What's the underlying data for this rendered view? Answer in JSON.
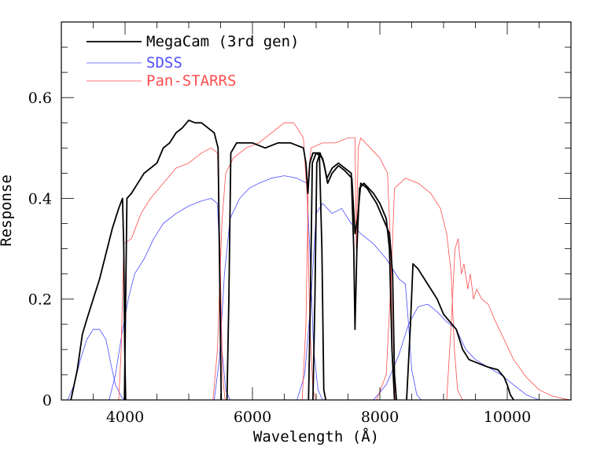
{
  "chart_data": {
    "type": "line",
    "title": "",
    "xlabel": "Wavelength (Å)",
    "ylabel": "Response",
    "xlim": [
      3000,
      11000
    ],
    "ylim": [
      0,
      0.75
    ],
    "xticks": [
      4000,
      6000,
      8000,
      10000
    ],
    "xtick_labels": [
      "4000",
      "6000",
      "8000",
      "10000"
    ],
    "yticks": [
      0,
      0.2,
      0.4,
      0.6
    ],
    "ytick_labels": [
      "0",
      "0.2",
      "0.4",
      "0.6"
    ],
    "x_minor_step": 500,
    "y_minor_step": 0.05,
    "grid": false,
    "legend_position": "top-left",
    "legend": [
      {
        "name": "MegaCam (3rd gen)",
        "color": "#000000"
      },
      {
        "name": "SDSS",
        "color": "#4d4dff"
      },
      {
        "name": "Pan-STARRS",
        "color": "#ff4d4d"
      }
    ],
    "series": [
      {
        "group": "MegaCam (3rd gen)",
        "band": "u",
        "color": "#000000",
        "points": [
          [
            3150,
            0
          ],
          [
            3250,
            0.06
          ],
          [
            3330,
            0.13
          ],
          [
            3400,
            0.16
          ],
          [
            3500,
            0.2
          ],
          [
            3600,
            0.24
          ],
          [
            3700,
            0.29
          ],
          [
            3800,
            0.34
          ],
          [
            3900,
            0.38
          ],
          [
            3960,
            0.4
          ],
          [
            3980,
            0.3
          ],
          [
            3995,
            0.1
          ],
          [
            4010,
            0
          ]
        ]
      },
      {
        "group": "MegaCam (3rd gen)",
        "band": "g",
        "color": "#000000",
        "points": [
          [
            3990,
            0
          ],
          [
            4010,
            0.2
          ],
          [
            4030,
            0.4
          ],
          [
            4100,
            0.41
          ],
          [
            4200,
            0.43
          ],
          [
            4300,
            0.45
          ],
          [
            4400,
            0.46
          ],
          [
            4500,
            0.47
          ],
          [
            4600,
            0.5
          ],
          [
            4700,
            0.51
          ],
          [
            4800,
            0.53
          ],
          [
            4900,
            0.54
          ],
          [
            5000,
            0.555
          ],
          [
            5100,
            0.55
          ],
          [
            5200,
            0.55
          ],
          [
            5300,
            0.54
          ],
          [
            5400,
            0.53
          ],
          [
            5460,
            0.5
          ],
          [
            5490,
            0.2
          ],
          [
            5510,
            0
          ]
        ]
      },
      {
        "group": "MegaCam (3rd gen)",
        "band": "r",
        "color": "#000000",
        "points": [
          [
            5600,
            0
          ],
          [
            5630,
            0.2
          ],
          [
            5660,
            0.49
          ],
          [
            5750,
            0.51
          ],
          [
            6000,
            0.51
          ],
          [
            6200,
            0.5
          ],
          [
            6400,
            0.51
          ],
          [
            6600,
            0.51
          ],
          [
            6800,
            0.5
          ],
          [
            6840,
            0.47
          ],
          [
            6870,
            0.41
          ],
          [
            6900,
            0.47
          ],
          [
            6950,
            0.49
          ],
          [
            7050,
            0.49
          ],
          [
            7090,
            0.3
          ],
          [
            7120,
            0.02
          ],
          [
            7150,
            0
          ]
        ]
      },
      {
        "group": "MegaCam (3rd gen)",
        "band": "i",
        "color": "#000000",
        "points": [
          [
            6880,
            0
          ],
          [
            6910,
            0.2
          ],
          [
            6940,
            0.47
          ],
          [
            7000,
            0.49
          ],
          [
            7100,
            0.48
          ],
          [
            7170,
            0.44
          ],
          [
            7250,
            0.46
          ],
          [
            7350,
            0.47
          ],
          [
            7450,
            0.46
          ],
          [
            7550,
            0.45
          ],
          [
            7590,
            0.3
          ],
          [
            7610,
            0.14
          ],
          [
            7640,
            0.3
          ],
          [
            7680,
            0.42
          ],
          [
            7750,
            0.43
          ],
          [
            7900,
            0.41
          ],
          [
            8000,
            0.39
          ],
          [
            8100,
            0.36
          ],
          [
            8150,
            0.3
          ],
          [
            8190,
            0.1
          ],
          [
            8230,
            0
          ]
        ]
      },
      {
        "group": "MegaCam (3rd gen)",
        "band": "i2",
        "color": "#000000",
        "points": [
          [
            6950,
            0
          ],
          [
            6980,
            0.2
          ],
          [
            7010,
            0.47
          ],
          [
            7060,
            0.49
          ],
          [
            7120,
            0.47
          ],
          [
            7180,
            0.43
          ],
          [
            7250,
            0.45
          ],
          [
            7350,
            0.465
          ],
          [
            7450,
            0.455
          ],
          [
            7560,
            0.44
          ],
          [
            7610,
            0.33
          ],
          [
            7650,
            0.36
          ],
          [
            7700,
            0.43
          ],
          [
            7800,
            0.42
          ],
          [
            7950,
            0.39
          ],
          [
            8050,
            0.36
          ],
          [
            8150,
            0.33
          ],
          [
            8200,
            0.25
          ],
          [
            8230,
            0.05
          ],
          [
            8260,
            0
          ]
        ]
      },
      {
        "group": "MegaCam (3rd gen)",
        "band": "z",
        "color": "#000000",
        "points": [
          [
            8420,
            0
          ],
          [
            8480,
            0.15
          ],
          [
            8520,
            0.27
          ],
          [
            8600,
            0.26
          ],
          [
            8700,
            0.24
          ],
          [
            8800,
            0.22
          ],
          [
            8900,
            0.2
          ],
          [
            9000,
            0.17
          ],
          [
            9100,
            0.155
          ],
          [
            9200,
            0.14
          ],
          [
            9300,
            0.1
          ],
          [
            9400,
            0.08
          ],
          [
            9500,
            0.075
          ],
          [
            9700,
            0.065
          ],
          [
            9850,
            0.06
          ],
          [
            9950,
            0.045
          ],
          [
            10000,
            0.03
          ],
          [
            10050,
            0.01
          ],
          [
            10100,
            0
          ]
        ]
      },
      {
        "group": "SDSS",
        "band": "u",
        "color": "#4d4dff",
        "points": [
          [
            3100,
            0
          ],
          [
            3200,
            0.03
          ],
          [
            3300,
            0.08
          ],
          [
            3400,
            0.12
          ],
          [
            3500,
            0.14
          ],
          [
            3600,
            0.14
          ],
          [
            3700,
            0.12
          ],
          [
            3780,
            0.07
          ],
          [
            3850,
            0.03
          ],
          [
            3950,
            0.005
          ],
          [
            4000,
            0
          ]
        ]
      },
      {
        "group": "SDSS",
        "band": "g",
        "color": "#4d4dff",
        "points": [
          [
            3750,
            0
          ],
          [
            3850,
            0.05
          ],
          [
            3950,
            0.13
          ],
          [
            4050,
            0.2
          ],
          [
            4150,
            0.25
          ],
          [
            4300,
            0.28
          ],
          [
            4450,
            0.32
          ],
          [
            4600,
            0.35
          ],
          [
            4800,
            0.37
          ],
          [
            5000,
            0.385
          ],
          [
            5200,
            0.395
          ],
          [
            5350,
            0.4
          ],
          [
            5450,
            0.39
          ],
          [
            5480,
            0.3
          ],
          [
            5520,
            0.1
          ],
          [
            5580,
            0.02
          ],
          [
            5650,
            0
          ]
        ]
      },
      {
        "group": "SDSS",
        "band": "r",
        "color": "#4d4dff",
        "points": [
          [
            5400,
            0
          ],
          [
            5480,
            0.08
          ],
          [
            5560,
            0.25
          ],
          [
            5650,
            0.36
          ],
          [
            5800,
            0.4
          ],
          [
            5950,
            0.42
          ],
          [
            6100,
            0.43
          ],
          [
            6300,
            0.44
          ],
          [
            6500,
            0.445
          ],
          [
            6700,
            0.44
          ],
          [
            6850,
            0.43
          ],
          [
            6900,
            0.3
          ],
          [
            6960,
            0.1
          ],
          [
            7030,
            0.02
          ],
          [
            7100,
            0
          ]
        ]
      },
      {
        "group": "SDSS",
        "band": "i",
        "color": "#4d4dff",
        "points": [
          [
            6700,
            0
          ],
          [
            6820,
            0.05
          ],
          [
            6920,
            0.2
          ],
          [
            7000,
            0.37
          ],
          [
            7100,
            0.39
          ],
          [
            7250,
            0.37
          ],
          [
            7400,
            0.38
          ],
          [
            7550,
            0.35
          ],
          [
            7700,
            0.33
          ],
          [
            7900,
            0.31
          ],
          [
            8100,
            0.28
          ],
          [
            8300,
            0.24
          ],
          [
            8400,
            0.23
          ],
          [
            8450,
            0.15
          ],
          [
            8500,
            0.06
          ],
          [
            8580,
            0.01
          ],
          [
            8650,
            0
          ]
        ]
      },
      {
        "group": "SDSS",
        "band": "z",
        "color": "#4d4dff",
        "points": [
          [
            7900,
            0
          ],
          [
            8100,
            0.03
          ],
          [
            8300,
            0.09
          ],
          [
            8450,
            0.15
          ],
          [
            8600,
            0.185
          ],
          [
            8750,
            0.19
          ],
          [
            8900,
            0.175
          ],
          [
            9050,
            0.155
          ],
          [
            9200,
            0.14
          ],
          [
            9350,
            0.1
          ],
          [
            9500,
            0.08
          ],
          [
            9700,
            0.065
          ],
          [
            9900,
            0.05
          ],
          [
            10100,
            0.03
          ],
          [
            10300,
            0.01
          ],
          [
            10500,
            0
          ]
        ]
      },
      {
        "group": "Pan-STARRS",
        "band": "g",
        "color": "#ff4d4d",
        "points": [
          [
            3900,
            0
          ],
          [
            3940,
            0.1
          ],
          [
            3980,
            0.31
          ],
          [
            4100,
            0.32
          ],
          [
            4250,
            0.37
          ],
          [
            4400,
            0.4
          ],
          [
            4600,
            0.43
          ],
          [
            4800,
            0.46
          ],
          [
            5000,
            0.47
          ],
          [
            5200,
            0.49
          ],
          [
            5350,
            0.5
          ],
          [
            5450,
            0.49
          ],
          [
            5490,
            0.3
          ],
          [
            5530,
            0.05
          ],
          [
            5570,
            0
          ]
        ]
      },
      {
        "group": "Pan-STARRS",
        "band": "r",
        "color": "#ff4d4d",
        "points": [
          [
            5380,
            0
          ],
          [
            5450,
            0.1
          ],
          [
            5520,
            0.35
          ],
          [
            5580,
            0.45
          ],
          [
            5700,
            0.48
          ],
          [
            5900,
            0.5
          ],
          [
            6100,
            0.51
          ],
          [
            6300,
            0.53
          ],
          [
            6500,
            0.55
          ],
          [
            6650,
            0.55
          ],
          [
            6800,
            0.52
          ],
          [
            6860,
            0.4
          ],
          [
            6900,
            0.15
          ],
          [
            6950,
            0.02
          ],
          [
            7000,
            0
          ]
        ]
      },
      {
        "group": "Pan-STARRS",
        "band": "i",
        "color": "#ff4d4d",
        "points": [
          [
            6780,
            0
          ],
          [
            6840,
            0.15
          ],
          [
            6880,
            0.45
          ],
          [
            6920,
            0.5
          ],
          [
            7100,
            0.51
          ],
          [
            7300,
            0.51
          ],
          [
            7500,
            0.52
          ],
          [
            7610,
            0.52
          ],
          [
            7630,
            0.3
          ],
          [
            7660,
            0.5
          ],
          [
            7700,
            0.52
          ],
          [
            7850,
            0.5
          ],
          [
            8000,
            0.48
          ],
          [
            8120,
            0.45
          ],
          [
            8170,
            0.3
          ],
          [
            8200,
            0.08
          ],
          [
            8250,
            0
          ]
        ]
      },
      {
        "group": "Pan-STARRS",
        "band": "z",
        "color": "#ff4d4d",
        "points": [
          [
            7950,
            0
          ],
          [
            8100,
            0.05
          ],
          [
            8180,
            0.25
          ],
          [
            8230,
            0.42
          ],
          [
            8400,
            0.44
          ],
          [
            8600,
            0.43
          ],
          [
            8800,
            0.41
          ],
          [
            8950,
            0.38
          ],
          [
            9050,
            0.33
          ],
          [
            9120,
            0.25
          ],
          [
            9170,
            0.1
          ],
          [
            9220,
            0.02
          ],
          [
            9300,
            0
          ]
        ]
      },
      {
        "group": "Pan-STARRS",
        "band": "y",
        "color": "#ff4d4d",
        "points": [
          [
            9050,
            0
          ],
          [
            9120,
            0.15
          ],
          [
            9180,
            0.3
          ],
          [
            9230,
            0.32
          ],
          [
            9280,
            0.25
          ],
          [
            9320,
            0.27
          ],
          [
            9380,
            0.22
          ],
          [
            9420,
            0.25
          ],
          [
            9470,
            0.2
          ],
          [
            9520,
            0.22
          ],
          [
            9600,
            0.2
          ],
          [
            9700,
            0.19
          ],
          [
            9800,
            0.16
          ],
          [
            9950,
            0.12
          ],
          [
            10100,
            0.08
          ],
          [
            10300,
            0.045
          ],
          [
            10500,
            0.02
          ],
          [
            10700,
            0.008
          ],
          [
            10900,
            0.002
          ],
          [
            11000,
            0
          ]
        ]
      }
    ]
  }
}
